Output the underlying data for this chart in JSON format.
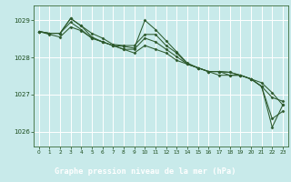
{
  "bg_color": "#c8eaea",
  "plot_bg_color": "#c8eaea",
  "label_bg_color": "#3a6b3a",
  "grid_color": "#ffffff",
  "line_color": "#2d5a2d",
  "marker_color": "#2d5a2d",
  "xlabel": "Graphe pression niveau de la mer (hPa)",
  "xlabel_color": "#ffffff",
  "tick_color": "#1a4a1a",
  "spine_color": "#3a6b3a",
  "ylim": [
    1025.6,
    1029.4
  ],
  "xlim": [
    -0.5,
    23.5
  ],
  "yticks": [
    1026,
    1027,
    1028,
    1029
  ],
  "xticks": [
    0,
    1,
    2,
    3,
    4,
    5,
    6,
    7,
    8,
    9,
    10,
    11,
    12,
    13,
    14,
    15,
    16,
    17,
    18,
    19,
    20,
    21,
    22,
    23
  ],
  "series": [
    [
      1028.7,
      1028.65,
      1028.65,
      1029.05,
      1028.85,
      1028.55,
      1028.42,
      1028.32,
      1028.3,
      1028.25,
      1029.0,
      1028.75,
      1028.45,
      1028.15,
      1027.85,
      1027.72,
      1027.62,
      1027.62,
      1027.6,
      1027.52,
      1027.42,
      1027.32,
      1027.05,
      1026.72
    ],
    [
      1028.7,
      1028.65,
      1028.65,
      1028.95,
      1028.75,
      1028.52,
      1028.42,
      1028.32,
      1028.22,
      1028.22,
      1028.52,
      1028.42,
      1028.22,
      1028.02,
      1027.82,
      1027.72,
      1027.62,
      1027.62,
      1027.52,
      1027.52,
      1027.42,
      1027.22,
      1026.35,
      1026.55
    ],
    [
      1028.7,
      1028.65,
      1028.65,
      1029.05,
      1028.85,
      1028.65,
      1028.52,
      1028.35,
      1028.32,
      1028.32,
      1028.62,
      1028.62,
      1028.32,
      1028.12,
      1027.82,
      1027.72,
      1027.62,
      1027.62,
      1027.6,
      1027.52,
      1027.42,
      1027.22,
      1026.12,
      1026.72
    ],
    [
      1028.7,
      1028.62,
      1028.55,
      1028.82,
      1028.72,
      1028.52,
      1028.42,
      1028.32,
      1028.22,
      1028.12,
      1028.32,
      1028.22,
      1028.12,
      1027.92,
      1027.82,
      1027.72,
      1027.62,
      1027.52,
      1027.52,
      1027.52,
      1027.42,
      1027.22,
      1026.92,
      1026.82
    ]
  ]
}
